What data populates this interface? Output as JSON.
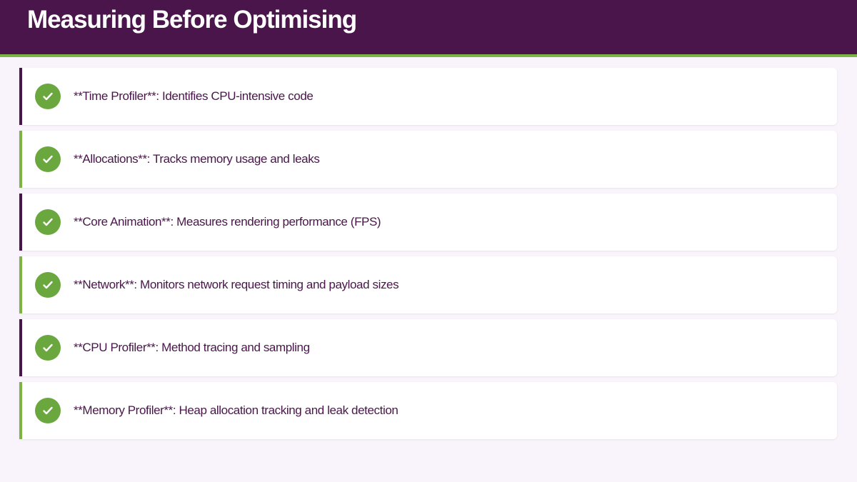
{
  "header": {
    "title": "Measuring Before Optimising"
  },
  "colors": {
    "primary": "#4a154b",
    "accent": "#7cb342",
    "check": "#6aa83f"
  },
  "items": [
    {
      "text": "**Time Profiler**: Identifies CPU-intensive code",
      "icon": "check-circle-icon"
    },
    {
      "text": "**Allocations**: Tracks memory usage and leaks",
      "icon": "check-circle-icon"
    },
    {
      "text": "**Core Animation**: Measures rendering performance (FPS)",
      "icon": "check-circle-icon"
    },
    {
      "text": "**Network**: Monitors network request timing and payload sizes",
      "icon": "check-circle-icon"
    },
    {
      "text": "**CPU Profiler**: Method tracing and sampling",
      "icon": "check-circle-icon"
    },
    {
      "text": "**Memory Profiler**: Heap allocation tracking and leak detection",
      "icon": "check-circle-icon"
    }
  ]
}
